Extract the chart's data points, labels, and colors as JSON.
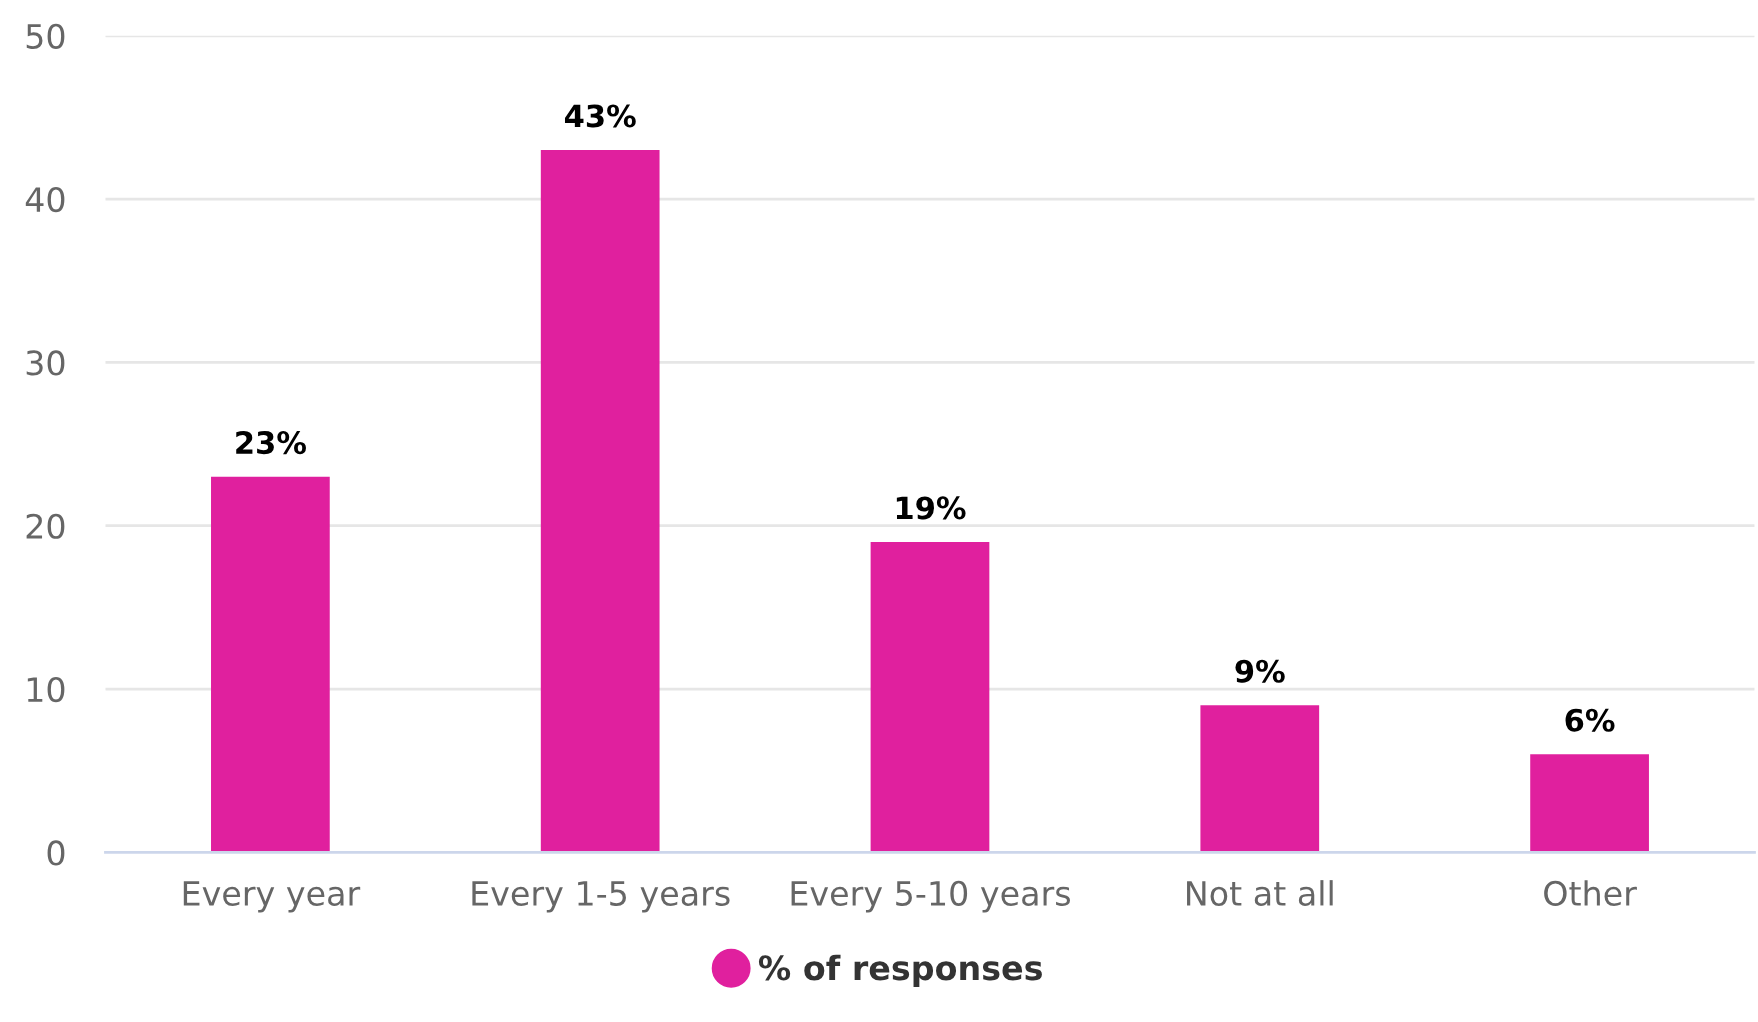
{
  "chart_data": {
    "type": "bar",
    "categories": [
      "Every year",
      "Every 1-5 years",
      "Every 5-10 years",
      "Not at all",
      "Other"
    ],
    "series": [
      {
        "name": "% of responses",
        "color": "#e0209e",
        "values": [
          23,
          43,
          19,
          9,
          6
        ],
        "value_labels": [
          "23%",
          "43%",
          "19%",
          "9%",
          "6%"
        ]
      }
    ],
    "ylim": [
      0,
      50
    ],
    "yticks": [
      0,
      10,
      20,
      30,
      40,
      50
    ],
    "grid": "y",
    "legend": "bottom"
  }
}
